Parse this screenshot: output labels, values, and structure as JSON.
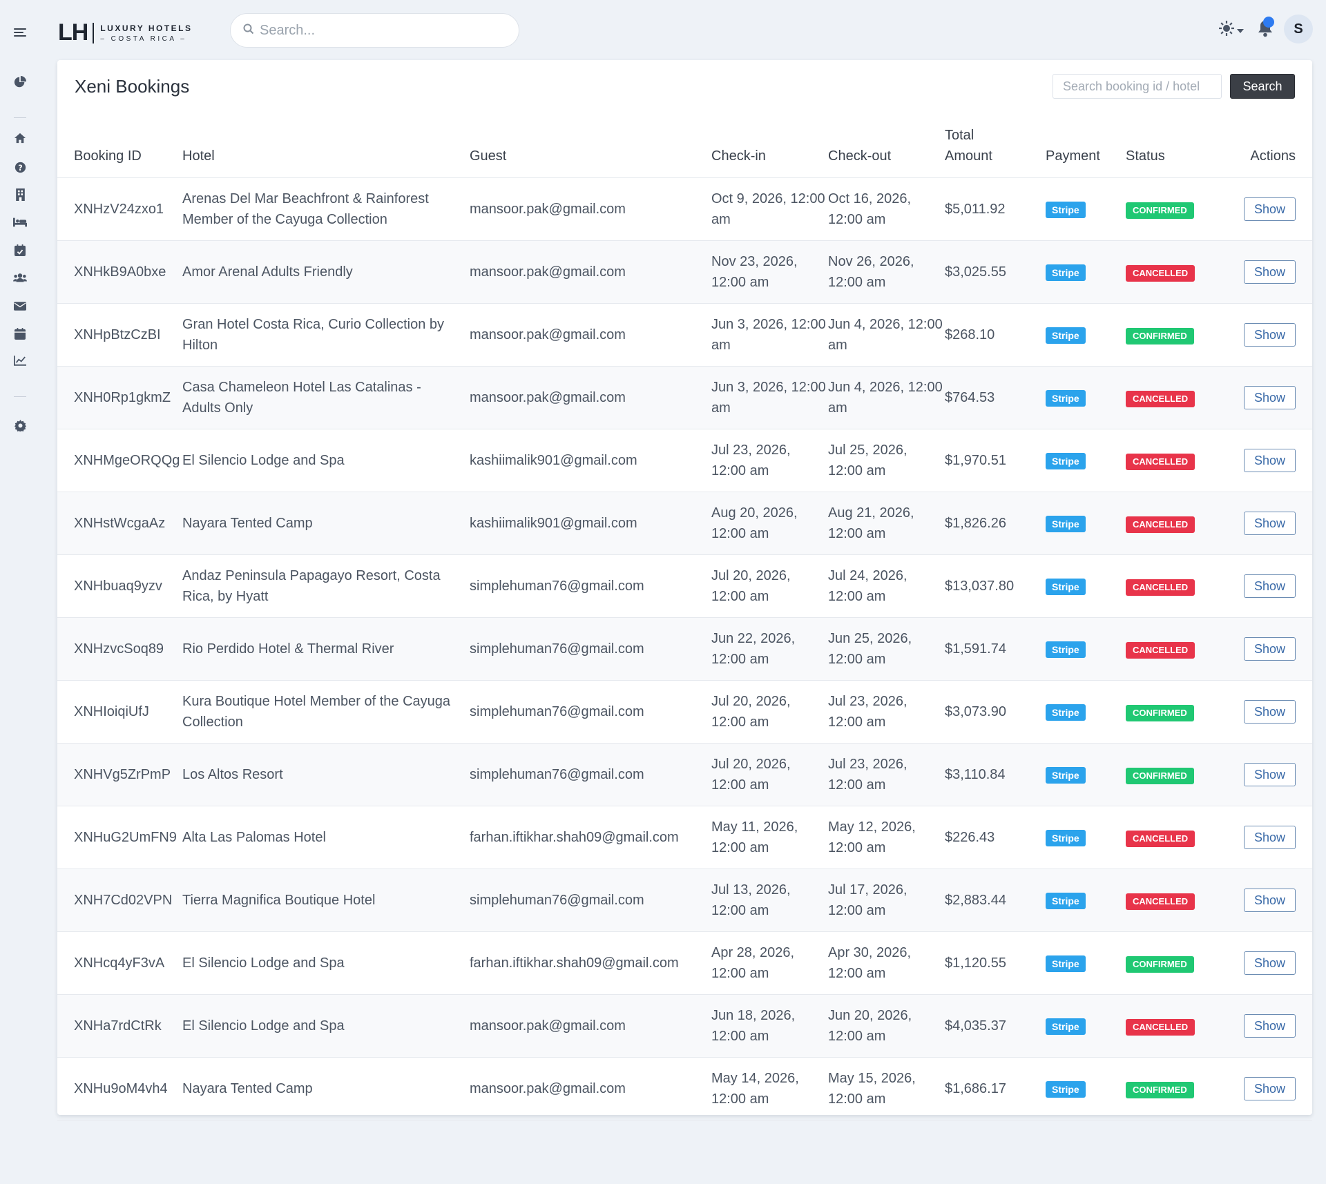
{
  "brand": {
    "mark": "LH",
    "line1": "LUXURY HOTELS",
    "line2": "– COSTA RICA –"
  },
  "topbar": {
    "search_placeholder": "Search...",
    "avatar_initial": "S"
  },
  "sidebar": {
    "icons": [
      "menu-icon",
      "chart-pie-icon",
      "home-icon",
      "help-icon",
      "building-icon",
      "bed-icon",
      "calendar-check-icon",
      "users-icon",
      "envelope-icon",
      "calendar-icon",
      "chart-line-icon",
      "gear-icon"
    ]
  },
  "page": {
    "title": "Xeni Bookings",
    "search_placeholder": "Search booking id / hotel",
    "search_button": "Search"
  },
  "colors": {
    "confirmed": "#20c873",
    "cancelled": "#e8344a",
    "stripe": "#2ba3ec"
  },
  "table": {
    "headers": {
      "id": "Booking ID",
      "hotel": "Hotel",
      "guest": "Guest",
      "checkin": "Check-in",
      "checkout": "Check-out",
      "total_1": "Total",
      "total_2": "Amount",
      "payment": "Payment",
      "status": "Status",
      "actions": "Actions"
    },
    "rows": [
      {
        "id": "XNHzV24zxo1",
        "hotel": "Arenas Del Mar Beachfront & Rainforest Member of the Cayuga Collection",
        "guest": "mansoor.pak@gmail.com",
        "checkin": "Oct 9, 2026, 12:00 am",
        "checkout": "Oct 16, 2026, 12:00 am",
        "total": "$5,011.92",
        "payment": "Stripe",
        "status": "CONFIRMED",
        "action": "Show"
      },
      {
        "id": "XNHkB9A0bxe",
        "hotel": "Amor Arenal Adults Friendly",
        "guest": "mansoor.pak@gmail.com",
        "checkin": "Nov 23, 2026, 12:00 am",
        "checkout": "Nov 26, 2026, 12:00 am",
        "total": "$3,025.55",
        "payment": "Stripe",
        "status": "CANCELLED",
        "action": "Show"
      },
      {
        "id": "XNHpBtzCzBI",
        "hotel": "Gran Hotel Costa Rica, Curio Collection by Hilton",
        "guest": "mansoor.pak@gmail.com",
        "checkin": "Jun 3, 2026, 12:00 am",
        "checkout": "Jun 4, 2026, 12:00 am",
        "total": "$268.10",
        "payment": "Stripe",
        "status": "CONFIRMED",
        "action": "Show"
      },
      {
        "id": "XNH0Rp1gkmZ",
        "hotel": "Casa Chameleon Hotel Las Catalinas - Adults Only",
        "guest": "mansoor.pak@gmail.com",
        "checkin": "Jun 3, 2026, 12:00 am",
        "checkout": "Jun 4, 2026, 12:00 am",
        "total": "$764.53",
        "payment": "Stripe",
        "status": "CANCELLED",
        "action": "Show"
      },
      {
        "id": "XNHMgeORQQg",
        "hotel": "El Silencio Lodge and Spa",
        "guest": "kashiimalik901@gmail.com",
        "checkin": "Jul 23, 2026, 12:00 am",
        "checkout": "Jul 25, 2026, 12:00 am",
        "total": "$1,970.51",
        "payment": "Stripe",
        "status": "CANCELLED",
        "action": "Show"
      },
      {
        "id": "XNHstWcgaAz",
        "hotel": "Nayara Tented Camp",
        "guest": "kashiimalik901@gmail.com",
        "checkin": "Aug 20, 2026, 12:00 am",
        "checkout": "Aug 21, 2026, 12:00 am",
        "total": "$1,826.26",
        "payment": "Stripe",
        "status": "CANCELLED",
        "action": "Show"
      },
      {
        "id": "XNHbuaq9yzv",
        "hotel": "Andaz Peninsula Papagayo Resort, Costa Rica, by Hyatt",
        "guest": "simplehuman76@gmail.com",
        "checkin": "Jul 20, 2026, 12:00 am",
        "checkout": "Jul 24, 2026, 12:00 am",
        "total": "$13,037.80",
        "payment": "Stripe",
        "status": "CANCELLED",
        "action": "Show"
      },
      {
        "id": "XNHzvcSoq89",
        "hotel": "Rio Perdido Hotel & Thermal River",
        "guest": "simplehuman76@gmail.com",
        "checkin": "Jun 22, 2026, 12:00 am",
        "checkout": "Jun 25, 2026, 12:00 am",
        "total": "$1,591.74",
        "payment": "Stripe",
        "status": "CANCELLED",
        "action": "Show"
      },
      {
        "id": "XNHIoiqiUfJ",
        "hotel": "Kura Boutique Hotel Member of the Cayuga Collection",
        "guest": "simplehuman76@gmail.com",
        "checkin": "Jul 20, 2026, 12:00 am",
        "checkout": "Jul 23, 2026, 12:00 am",
        "total": "$3,073.90",
        "payment": "Stripe",
        "status": "CONFIRMED",
        "action": "Show"
      },
      {
        "id": "XNHVg5ZrPmP",
        "hotel": "Los Altos Resort",
        "guest": "simplehuman76@gmail.com",
        "checkin": "Jul 20, 2026, 12:00 am",
        "checkout": "Jul 23, 2026, 12:00 am",
        "total": "$3,110.84",
        "payment": "Stripe",
        "status": "CONFIRMED",
        "action": "Show"
      },
      {
        "id": "XNHuG2UmFN9",
        "hotel": "Alta Las Palomas Hotel",
        "guest": "farhan.iftikhar.shah09@gmail.com",
        "checkin": "May 11, 2026, 12:00 am",
        "checkout": "May 12, 2026, 12:00 am",
        "total": "$226.43",
        "payment": "Stripe",
        "status": "CANCELLED",
        "action": "Show"
      },
      {
        "id": "XNH7Cd02VPN",
        "hotel": "Tierra Magnifica Boutique Hotel",
        "guest": "simplehuman76@gmail.com",
        "checkin": "Jul 13, 2026, 12:00 am",
        "checkout": "Jul 17, 2026, 12:00 am",
        "total": "$2,883.44",
        "payment": "Stripe",
        "status": "CANCELLED",
        "action": "Show"
      },
      {
        "id": "XNHcq4yF3vA",
        "hotel": "El Silencio Lodge and Spa",
        "guest": "farhan.iftikhar.shah09@gmail.com",
        "checkin": "Apr 28, 2026, 12:00 am",
        "checkout": "Apr 30, 2026, 12:00 am",
        "total": "$1,120.55",
        "payment": "Stripe",
        "status": "CONFIRMED",
        "action": "Show"
      },
      {
        "id": "XNHa7rdCtRk",
        "hotel": "El Silencio Lodge and Spa",
        "guest": "mansoor.pak@gmail.com",
        "checkin": "Jun 18, 2026, 12:00 am",
        "checkout": "Jun 20, 2026, 12:00 am",
        "total": "$4,035.37",
        "payment": "Stripe",
        "status": "CANCELLED",
        "action": "Show"
      },
      {
        "id": "XNHu9oM4vh4",
        "hotel": "Nayara Tented Camp",
        "guest": "mansoor.pak@gmail.com",
        "checkin": "May 14, 2026, 12:00 am",
        "checkout": "May 15, 2026, 12:00 am",
        "total": "$1,686.17",
        "payment": "Stripe",
        "status": "CONFIRMED",
        "action": "Show"
      }
    ]
  }
}
